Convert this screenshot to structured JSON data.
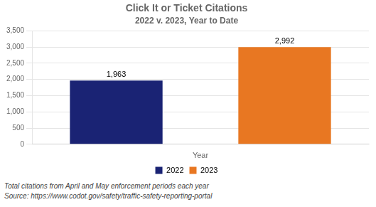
{
  "chart_data": {
    "type": "bar",
    "title": "Click It or Ticket Citations",
    "subtitle": "2022 v. 2023, Year to Date",
    "categories": [
      "2022",
      "2023"
    ],
    "values": [
      1963,
      2992
    ],
    "colors": [
      "#1a2374",
      "#e87722"
    ],
    "data_labels": true,
    "value_labels": [
      "1,963",
      "2,992"
    ],
    "xlabel": "Year",
    "ylim": [
      0,
      3500
    ],
    "yticks": [
      0,
      500,
      {
        "value": 1000,
        "label": "1,000"
      },
      {
        "value": 1500,
        "label": "1,500"
      },
      {
        "value": 2000,
        "label": "2,000"
      },
      {
        "value": 2500,
        "label": "2,500"
      },
      {
        "value": 3000,
        "label": "3,000"
      },
      {
        "value": 3500,
        "label": "3,500"
      }
    ],
    "grid": true,
    "legend": "bottom",
    "tick_labels": "y",
    "annotations": [
      "Total citations from April and May enforcement periods each year",
      "Source: https://www.codot.gov/safety/traffic-safety-reporting-portal"
    ]
  }
}
